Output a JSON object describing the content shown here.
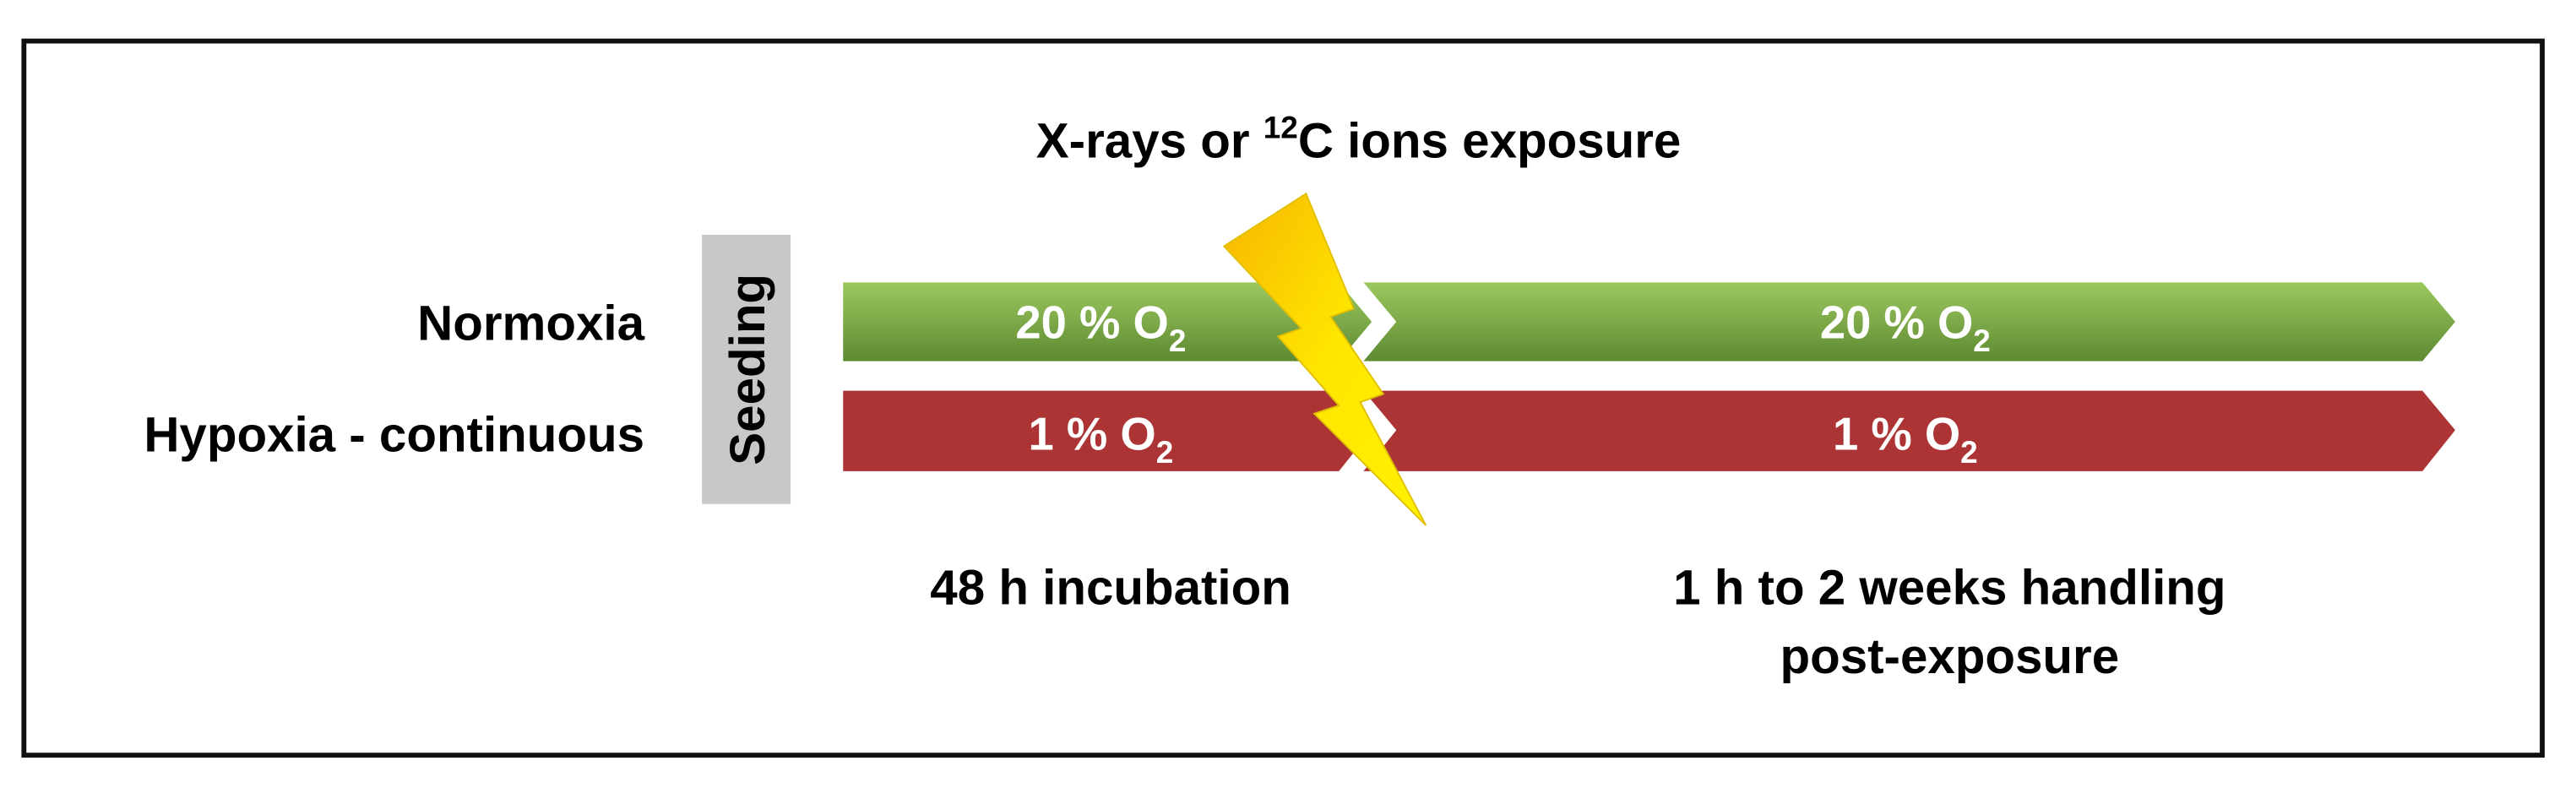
{
  "title": {
    "before": "X-rays or ",
    "sup": "12",
    "after": "C ions exposure"
  },
  "seeding": "Seeding",
  "rows": [
    {
      "label": "Normoxia",
      "phases": [
        {
          "text": "20 % O",
          "sub": "2"
        },
        {
          "text": "20 % O",
          "sub": "2"
        }
      ]
    },
    {
      "label": "Hypoxia - continuous",
      "phases": [
        {
          "text": "1 % O",
          "sub": "2"
        },
        {
          "text": "1 % O",
          "sub": "2"
        }
      ]
    }
  ],
  "phase_labels": [
    [
      "48 h incubation"
    ],
    [
      "1 h to 2 weeks handling",
      "post-exposure"
    ]
  ]
}
